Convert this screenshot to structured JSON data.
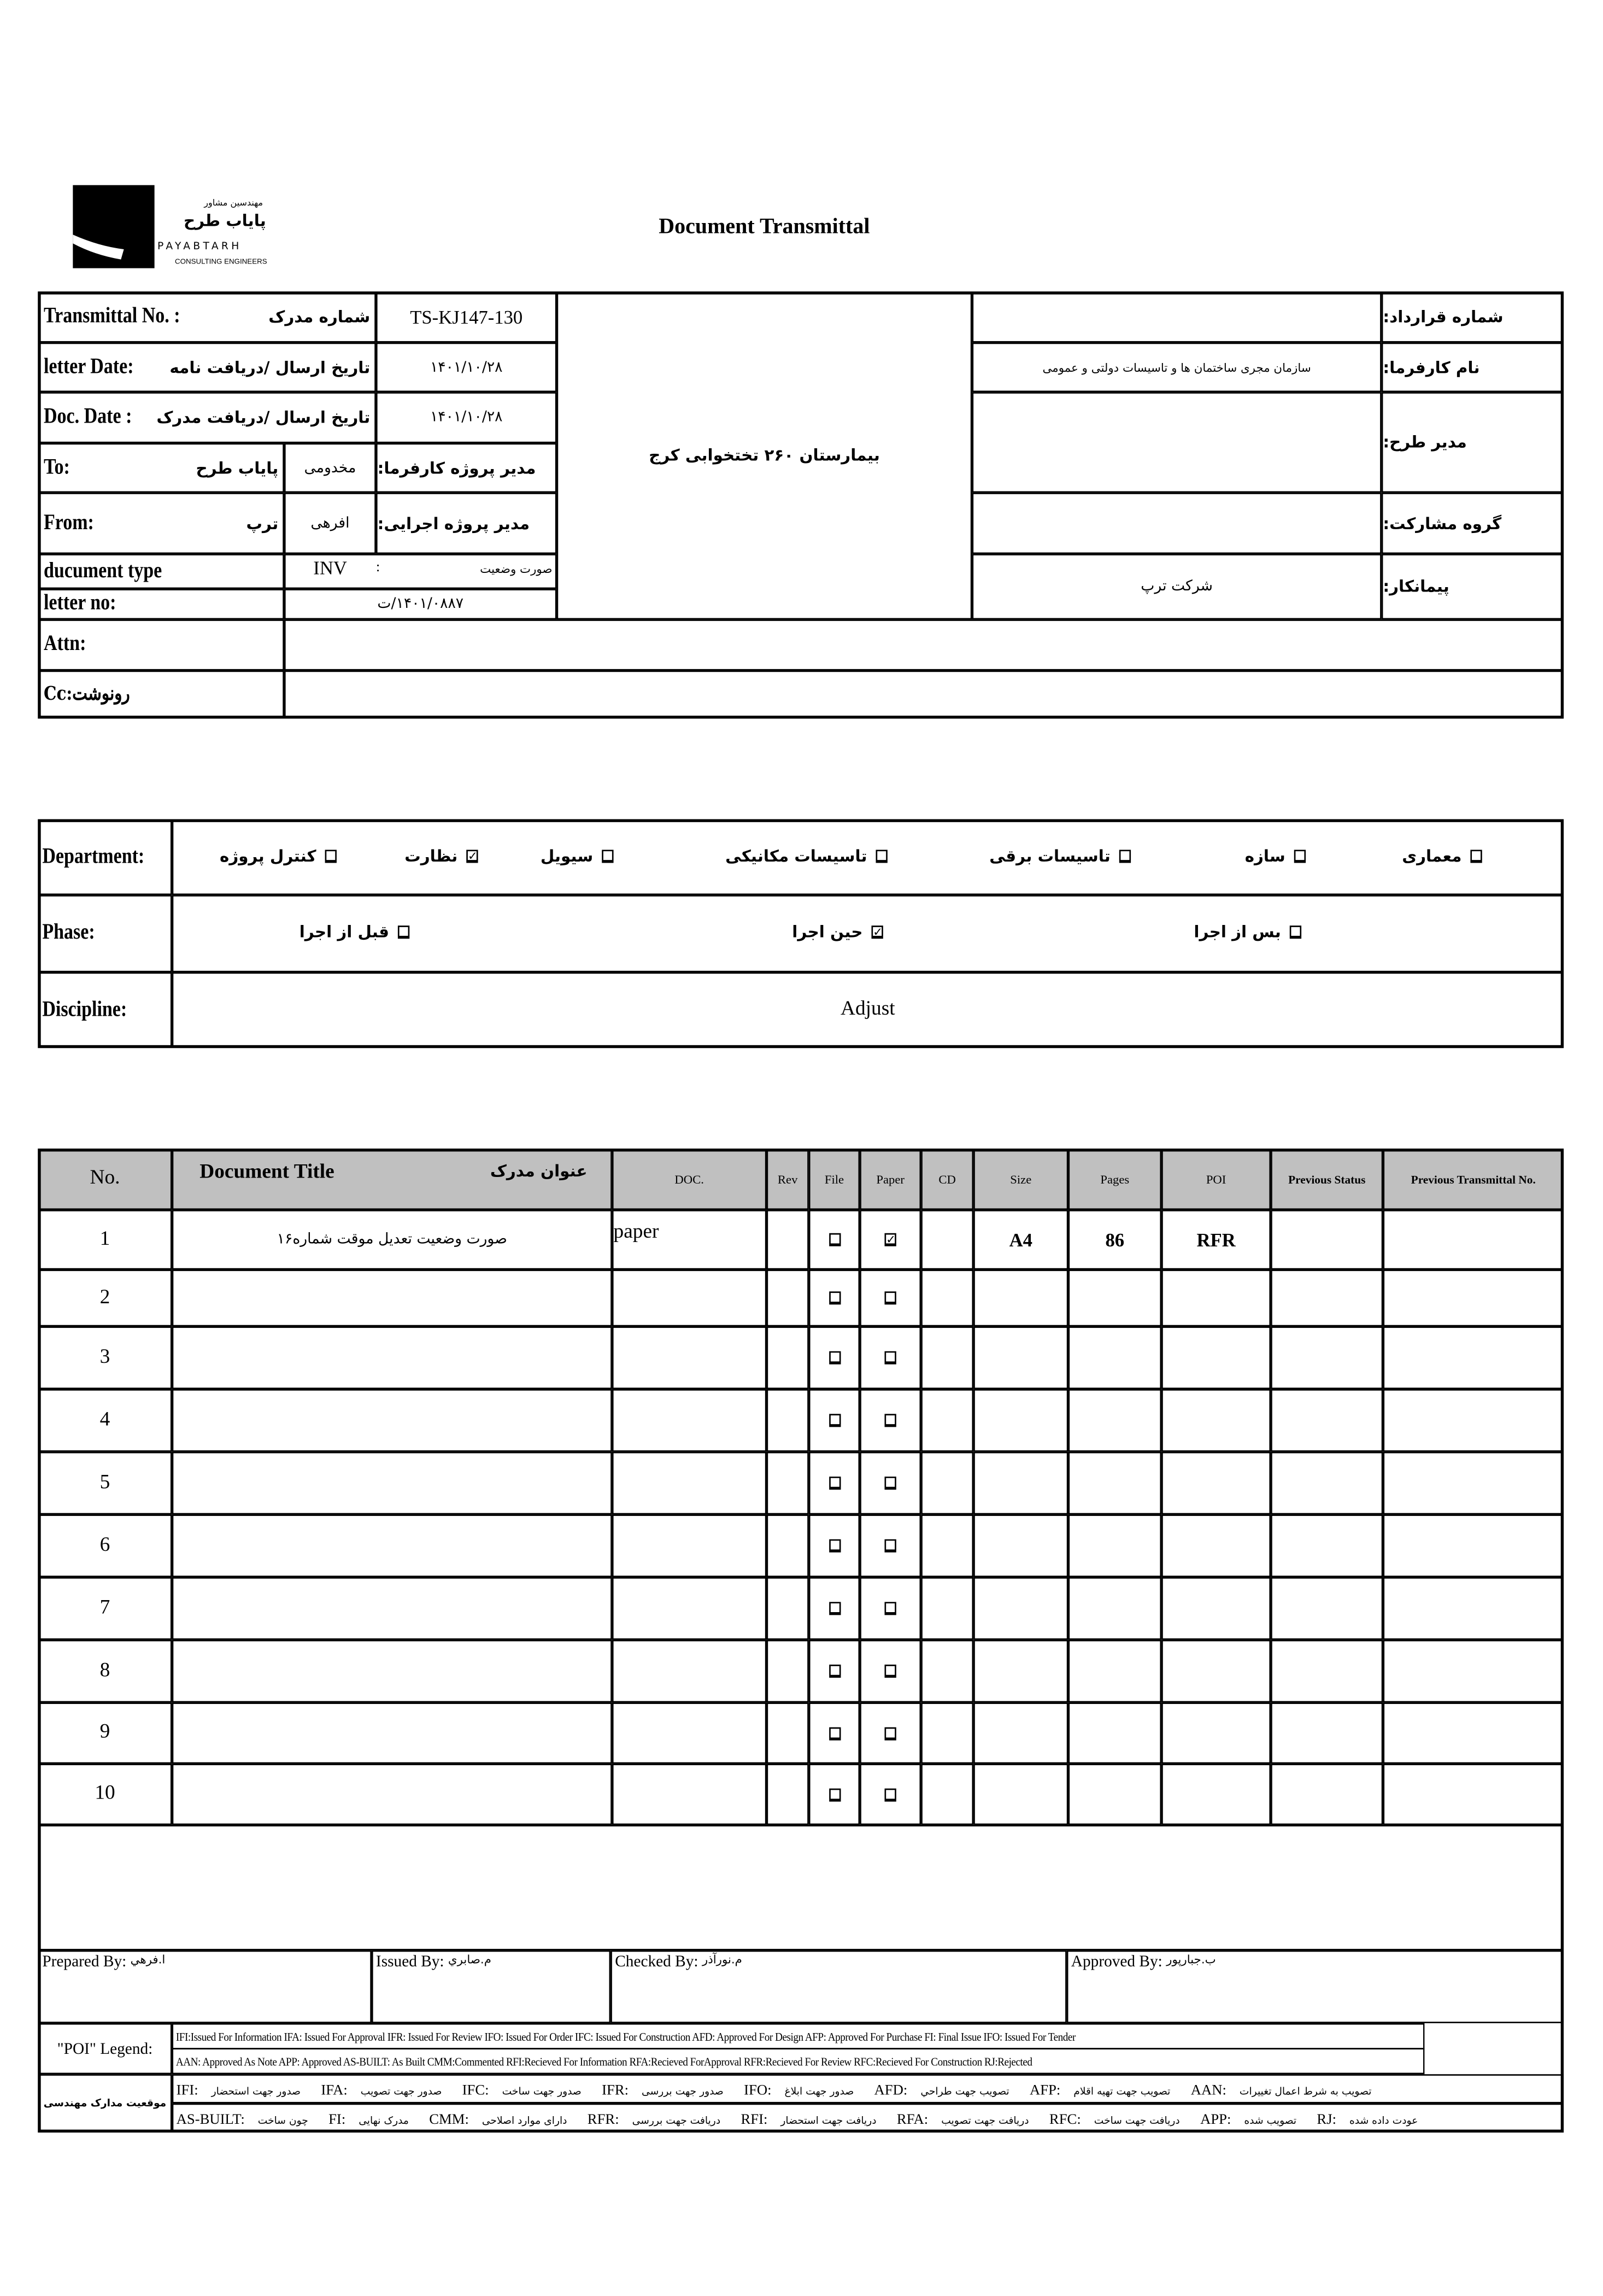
{
  "logo": {
    "company_fa_small": "مهندسین مشاور",
    "company_fa": "پاياب طرح",
    "company_en": "PAYABTARH",
    "subtitle": "CONSULTING ENGINEERS"
  },
  "title": "Document Transmittal",
  "header": {
    "transmittal_no": {
      "label_en": "Transmittal No. :",
      "label_fa": "شماره مدرک",
      "value": "TS-KJ147-130"
    },
    "letter_date": {
      "label_en": "letter Date:",
      "label_fa": "تاریخ ارسال /دریافت نامه",
      "value": "۱۴۰۱/۱۰/۲۸"
    },
    "doc_date": {
      "label_en": "Doc. Date :",
      "label_fa": "تاریخ ارسال /دریافت مدرک",
      "value": "۱۴۰۱/۱۰/۲۸"
    },
    "to": {
      "label": "To:",
      "company": "پاياب طرح",
      "person": "مخدومی",
      "role": "مدیر پروژه کارفرما:"
    },
    "from": {
      "label": "From:",
      "company": "ترپ",
      "person": "افرهی",
      "role": "مدیر پروژه اجرایی:"
    },
    "document_type": {
      "label": "ducument type",
      "code": "INV",
      "sep": ":",
      "name": "صورت وضعیت"
    },
    "letter_no": {
      "label": "letter no:",
      "value": "۱۴۰۱/۰۸۸۷/ت"
    },
    "project": "بیمارستان ۲۶۰ تختخوابی کرج",
    "contract_no": {
      "label": "شماره قرارداد:",
      "value": ""
    },
    "employer": {
      "label": "نام کارفرما:",
      "value": "سازمان مجری ساختمان ها و تاسیسات دولتی و عمومی"
    },
    "plan_manager": {
      "label": "مدیر طرح:",
      "value": ""
    },
    "partnership": {
      "label": "گروه مشارکت:",
      "value": ""
    },
    "contractor": {
      "label": "پیمانکار:",
      "value": "شرکت ترپ"
    },
    "attn": {
      "label": "Attn:",
      "value": ""
    },
    "cc": {
      "label": "Cc:رونوشت",
      "value": ""
    }
  },
  "department": {
    "label": "Department:",
    "options": [
      {
        "label": "معماری",
        "checked": false
      },
      {
        "label": "سازه",
        "checked": false
      },
      {
        "label": "تاسیسات برقی",
        "checked": false
      },
      {
        "label": "تاسیسات مکانیکی",
        "checked": false
      },
      {
        "label": "سیویل",
        "checked": false
      },
      {
        "label": "نظارت",
        "checked": true
      },
      {
        "label": "کنترل پروژه",
        "checked": false
      }
    ]
  },
  "phase": {
    "label": "Phase:",
    "options": [
      {
        "label": "بس از اجرا",
        "checked": false
      },
      {
        "label": "حین اجرا",
        "checked": true
      },
      {
        "label": "قبل از اجرا",
        "checked": false
      }
    ]
  },
  "discipline": {
    "label": "Discipline:",
    "value": "Adjust"
  },
  "doc_table": {
    "headers": {
      "no": "No.",
      "title_en": "Document Title",
      "title_fa": "عنوان مدرک",
      "doc": "DOC.",
      "rev": "Rev",
      "file": "File",
      "paper": "Paper",
      "cd": "CD",
      "size": "Size",
      "pages": "Pages",
      "poi": "POI",
      "prev_status": "Previous Status",
      "prev_transmittal": "Previous Transmittal No."
    },
    "rows": [
      {
        "no": "1",
        "title": "صورت وضعیت تعدیل موقت شماره۱۶",
        "doc": "paper",
        "rev": "",
        "file": false,
        "paper": true,
        "cd": "",
        "size": "A4",
        "pages": "86",
        "poi": "RFR",
        "prev_status": "",
        "prev_transmittal": ""
      },
      {
        "no": "2",
        "title": "",
        "doc": "",
        "rev": "",
        "file": false,
        "paper": false,
        "cd": "",
        "size": "",
        "pages": "",
        "poi": "",
        "prev_status": "",
        "prev_transmittal": ""
      },
      {
        "no": "3",
        "title": "",
        "doc": "",
        "rev": "",
        "file": false,
        "paper": false,
        "cd": "",
        "size": "",
        "pages": "",
        "poi": "",
        "prev_status": "",
        "prev_transmittal": ""
      },
      {
        "no": "4",
        "title": "",
        "doc": "",
        "rev": "",
        "file": false,
        "paper": false,
        "cd": "",
        "size": "",
        "pages": "",
        "poi": "",
        "prev_status": "",
        "prev_transmittal": ""
      },
      {
        "no": "5",
        "title": "",
        "doc": "",
        "rev": "",
        "file": false,
        "paper": false,
        "cd": "",
        "size": "",
        "pages": "",
        "poi": "",
        "prev_status": "",
        "prev_transmittal": ""
      },
      {
        "no": "6",
        "title": "",
        "doc": "",
        "rev": "",
        "file": false,
        "paper": false,
        "cd": "",
        "size": "",
        "pages": "",
        "poi": "",
        "prev_status": "",
        "prev_transmittal": ""
      },
      {
        "no": "7",
        "title": "",
        "doc": "",
        "rev": "",
        "file": false,
        "paper": false,
        "cd": "",
        "size": "",
        "pages": "",
        "poi": "",
        "prev_status": "",
        "prev_transmittal": ""
      },
      {
        "no": "8",
        "title": "",
        "doc": "",
        "rev": "",
        "file": false,
        "paper": false,
        "cd": "",
        "size": "",
        "pages": "",
        "poi": "",
        "prev_status": "",
        "prev_transmittal": ""
      },
      {
        "no": "9",
        "title": "",
        "doc": "",
        "rev": "",
        "file": false,
        "paper": false,
        "cd": "",
        "size": "",
        "pages": "",
        "poi": "",
        "prev_status": "",
        "prev_transmittal": ""
      },
      {
        "no": "10",
        "title": "",
        "doc": "",
        "rev": "",
        "file": false,
        "paper": false,
        "cd": "",
        "size": "",
        "pages": "",
        "poi": "",
        "prev_status": "",
        "prev_transmittal": ""
      }
    ]
  },
  "signatures": {
    "prepared": {
      "label": "Prepared By:",
      "name": "ا.فرهي"
    },
    "issued": {
      "label": "Issued By:",
      "name": "م.صابري"
    },
    "checked": {
      "label": "Checked By:",
      "name": "م.نورآذر"
    },
    "approved": {
      "label": "Approved By:",
      "name": "ب.جبارپور"
    }
  },
  "poi_legend": {
    "label": "\"POI\" Legend:",
    "line1": "IFI:Issued For Information  IFA: Issued For Approval  IFR: Issued For Review   IFO: Issued For Order  IFC: Issued For Construction AFD: Approved For Design AFP: Approved For Purchase  FI: Final Issue  IFO: Issued For Tender",
    "line2": "AAN: Approved As Note  APP: Approved  AS-BUILT: As Built CMM:Commented  RFI:Recieved For Information   RFA:Recieved ForApproval   RFR:Recieved For Review  RFC:Recieved For Construction  RJ:Rejected"
  },
  "fa_legend": {
    "label": "موقعیت مدارک مهندسی",
    "line1": [
      {
        "code": "IFI:",
        "text": "صدور جهت استحضار"
      },
      {
        "code": "IFA:",
        "text": "صدور جهت تصویب"
      },
      {
        "code": "IFC:",
        "text": "صدور جهت ساخت"
      },
      {
        "code": "IFR:",
        "text": "صدور جهت بررسی"
      },
      {
        "code": "IFO:",
        "text": "صدور جهت ابلاغ"
      },
      {
        "code": "AFD:",
        "text": "تصویب جهت طراحي"
      },
      {
        "code": "AFP:",
        "text": "تصویب جهت تهیه اقلام"
      },
      {
        "code": "AAN:",
        "text": "تصویب به شرط اعمال تغییرات"
      }
    ],
    "line2": [
      {
        "code": "AS-BUILT:",
        "text": "چون ساخت"
      },
      {
        "code": "FI:",
        "text": "مدرک نهایی"
      },
      {
        "code": "CMM:",
        "text": "دارای موارد اصلاحی"
      },
      {
        "code": "RFR:",
        "text": "دریافت جهت بررسی"
      },
      {
        "code": "RFI:",
        "text": "دریافت جهت استحضار"
      },
      {
        "code": "RFA:",
        "text": "دریافت جهت تصویب"
      },
      {
        "code": "RFC:",
        "text": "دریافت جهت ساخت"
      },
      {
        "code": "APP:",
        "text": "تصویب شده"
      },
      {
        "code": "RJ:",
        "text": "عودت داده شده"
      }
    ]
  },
  "colors": {
    "header_bg": "#c0c0c0",
    "line": "#000000"
  }
}
